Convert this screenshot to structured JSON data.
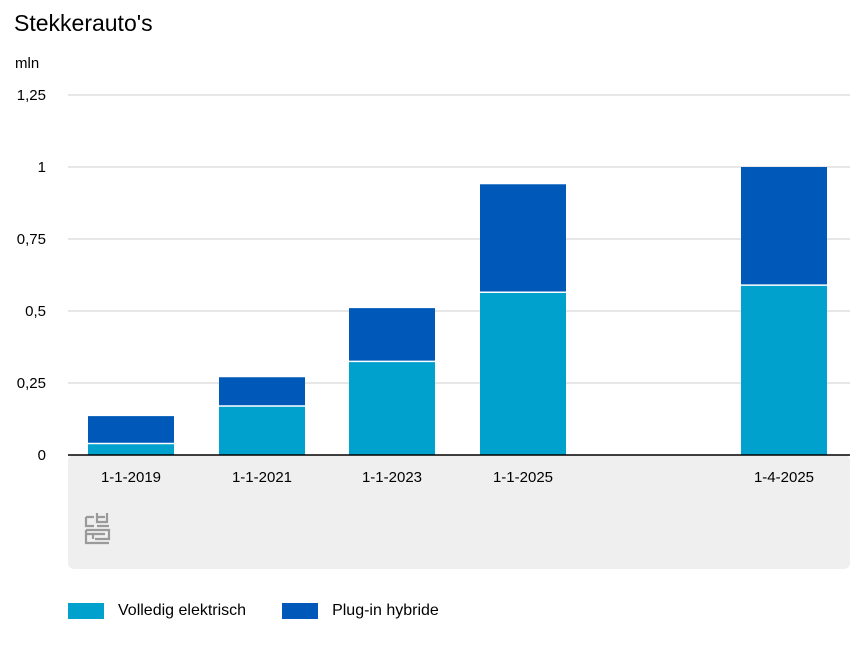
{
  "chart_data": {
    "type": "bar",
    "stacked": true,
    "title": "Stekkerauto's",
    "ylabel": "mln",
    "xlabel": "",
    "ylim": [
      0,
      1.25
    ],
    "yticks": [
      "0",
      "0,25",
      "0,5",
      "0,75",
      "1",
      "1,25"
    ],
    "ytick_values": [
      0,
      0.25,
      0.5,
      0.75,
      1,
      1.25
    ],
    "categories": [
      "1-1-2019",
      "1-1-2021",
      "1-1-2023",
      "1-1-2025",
      "1-4-2025"
    ],
    "series": [
      {
        "name": "Volledig elektrisch",
        "color": "#00a1cd",
        "values": [
          0.04,
          0.17,
          0.325,
          0.565,
          0.59
        ]
      },
      {
        "name": "Plug-in hybride",
        "color": "#0058b8",
        "values": [
          0.095,
          0.1,
          0.185,
          0.375,
          0.41
        ]
      }
    ],
    "grid": true,
    "legend_position": "bottom-left",
    "logo": "cbs-logo"
  }
}
